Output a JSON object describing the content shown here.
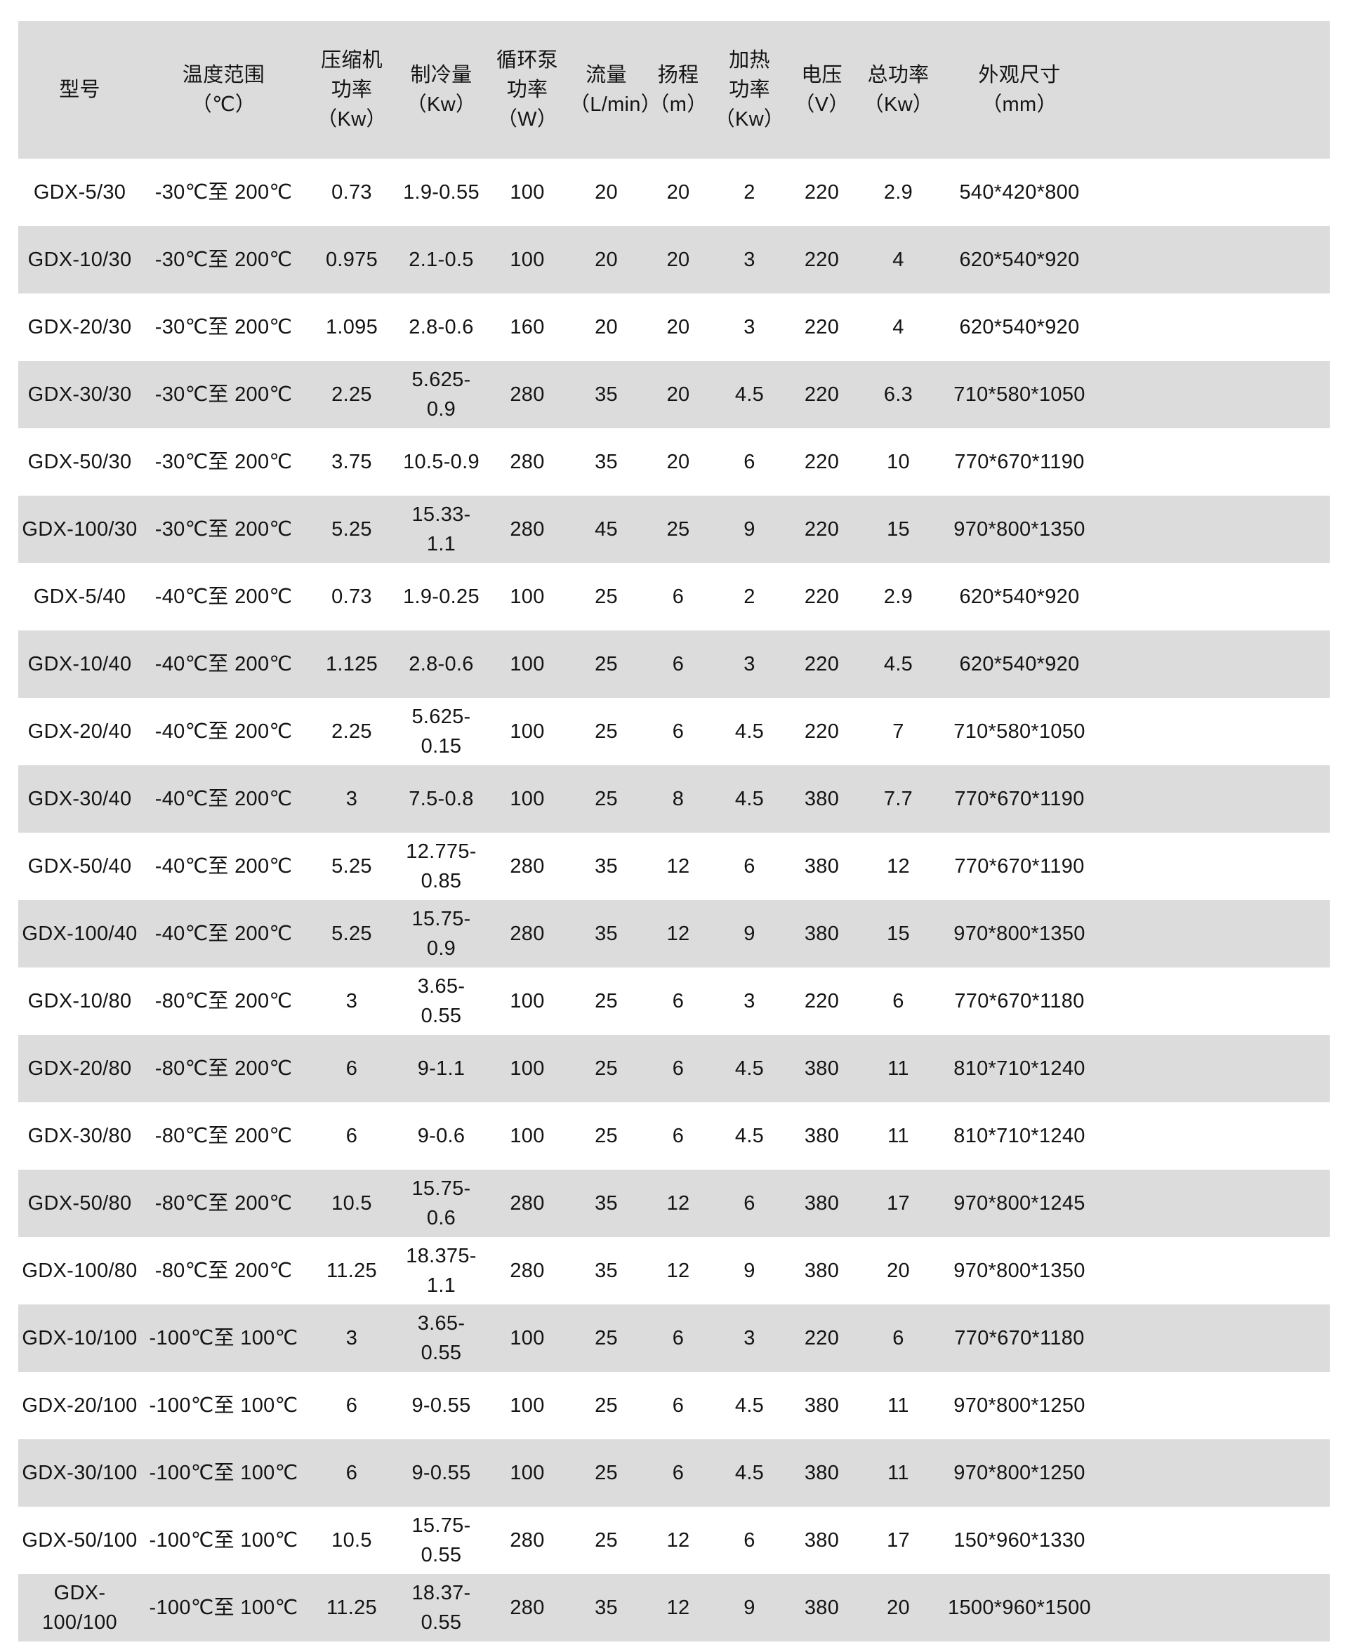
{
  "colors": {
    "stripe": "#dcdcdc",
    "text": "#141414",
    "background": "#ffffff"
  },
  "table": {
    "headers": [
      "型号",
      "温度范围\n（℃）",
      "压缩机\n功率\n（Kw）",
      "制冷量\n（Kw）",
      "循环泵\n功率\n（W）",
      "流量\n（L/min）",
      "扬程\n（m）",
      "加热\n功率\n（Kw）",
      "电压\n（V）",
      "总功率\n（Kw）",
      "外观尺寸\n（mm）"
    ],
    "rows": [
      [
        "GDX-5/30",
        "-30℃至 200℃",
        "0.73",
        "1.9-0.55",
        "100",
        "20",
        "20",
        "2",
        "220",
        "2.9",
        "540*420*800"
      ],
      [
        "GDX-10/30",
        "-30℃至 200℃",
        "0.975",
        "2.1-0.5",
        "100",
        "20",
        "20",
        "3",
        "220",
        "4",
        "620*540*920"
      ],
      [
        "GDX-20/30",
        "-30℃至 200℃",
        "1.095",
        "2.8-0.6",
        "160",
        "20",
        "20",
        "3",
        "220",
        "4",
        "620*540*920"
      ],
      [
        "GDX-30/30",
        "-30℃至 200℃",
        "2.25",
        "5.625-0.9",
        "280",
        "35",
        "20",
        "4.5",
        "220",
        "6.3",
        "710*580*1050"
      ],
      [
        "GDX-50/30",
        "-30℃至 200℃",
        "3.75",
        "10.5-0.9",
        "280",
        "35",
        "20",
        "6",
        "220",
        "10",
        "770*670*1190"
      ],
      [
        "GDX-100/30",
        "-30℃至 200℃",
        "5.25",
        "15.33-1.1",
        "280",
        "45",
        "25",
        "9",
        "220",
        "15",
        "970*800*1350"
      ],
      [
        "GDX-5/40",
        "-40℃至 200℃",
        "0.73",
        "1.9-0.25",
        "100",
        "25",
        "6",
        "2",
        "220",
        "2.9",
        "620*540*920"
      ],
      [
        "GDX-10/40",
        "-40℃至 200℃",
        "1.125",
        "2.8-0.6",
        "100",
        "25",
        "6",
        "3",
        "220",
        "4.5",
        "620*540*920"
      ],
      [
        "GDX-20/40",
        "-40℃至 200℃",
        "2.25",
        "5.625-0.15",
        "100",
        "25",
        "6",
        "4.5",
        "220",
        "7",
        "710*580*1050"
      ],
      [
        "GDX-30/40",
        "-40℃至 200℃",
        "3",
        "7.5-0.8",
        "100",
        "25",
        "8",
        "4.5",
        "380",
        "7.7",
        "770*670*1190"
      ],
      [
        "GDX-50/40",
        "-40℃至 200℃",
        "5.25",
        "12.775-0.85",
        "280",
        "35",
        "12",
        "6",
        "380",
        "12",
        "770*670*1190"
      ],
      [
        "GDX-100/40",
        "-40℃至 200℃",
        "5.25",
        "15.75-0.9",
        "280",
        "35",
        "12",
        "9",
        "380",
        "15",
        "970*800*1350"
      ],
      [
        "GDX-10/80",
        "-80℃至 200℃",
        "3",
        "3.65-0.55",
        "100",
        "25",
        "6",
        "3",
        "220",
        "6",
        "770*670*1180"
      ],
      [
        "GDX-20/80",
        "-80℃至 200℃",
        "6",
        "9-1.1",
        "100",
        "25",
        "6",
        "4.5",
        "380",
        "11",
        "810*710*1240"
      ],
      [
        "GDX-30/80",
        "-80℃至 200℃",
        "6",
        "9-0.6",
        "100",
        "25",
        "6",
        "4.5",
        "380",
        "11",
        "810*710*1240"
      ],
      [
        "GDX-50/80",
        "-80℃至 200℃",
        "10.5",
        "15.75-0.6",
        "280",
        "35",
        "12",
        "6",
        "380",
        "17",
        "970*800*1245"
      ],
      [
        "GDX-100/80",
        "-80℃至 200℃",
        "11.25",
        "18.375-1.1",
        "280",
        "35",
        "12",
        "9",
        "380",
        "20",
        "970*800*1350"
      ],
      [
        "GDX-10/100",
        "-100℃至 100℃",
        "3",
        "3.65-0.55",
        "100",
        "25",
        "6",
        "3",
        "220",
        "6",
        "770*670*1180"
      ],
      [
        "GDX-20/100",
        "-100℃至 100℃",
        "6",
        "9-0.55",
        "100",
        "25",
        "6",
        "4.5",
        "380",
        "11",
        "970*800*1250"
      ],
      [
        "GDX-30/100",
        "-100℃至 100℃",
        "6",
        "9-0.55",
        "100",
        "25",
        "6",
        "4.5",
        "380",
        "11",
        "970*800*1250"
      ],
      [
        "GDX-50/100",
        "-100℃至 100℃",
        "10.5",
        "15.75-0.55",
        "280",
        "25",
        "12",
        "6",
        "380",
        "17",
        "150*960*1330"
      ],
      [
        "GDX-100/100",
        "-100℃至 100℃",
        "11.25",
        "18.37-0.55",
        "280",
        "35",
        "12",
        "9",
        "380",
        "20",
        "1500*960*1500"
      ]
    ]
  }
}
